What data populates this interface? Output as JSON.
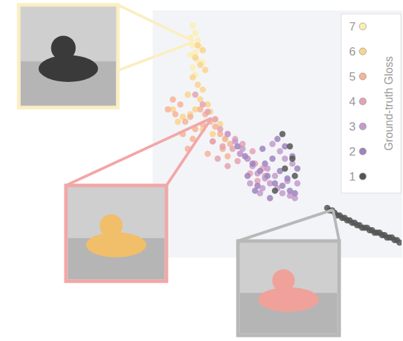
{
  "chart_data": {
    "type": "scatter",
    "legend_title": "Ground-truth Gloss",
    "legend": "top-right",
    "tick_labels": false,
    "xlim": [
      0,
      100
    ],
    "ylim": [
      0,
      100
    ],
    "series": [
      {
        "name": "7",
        "color": "#fbefb0",
        "x": [
          16,
          17,
          15,
          18,
          16,
          19,
          17,
          15,
          18,
          20,
          16,
          17
        ],
        "y": [
          94,
          91,
          89,
          88,
          86,
          85,
          83,
          82,
          80,
          79,
          77,
          74
        ]
      },
      {
        "name": "6",
        "color": "#f9d48e",
        "x": [
          18,
          20,
          17,
          19,
          21,
          16,
          18,
          20,
          14,
          19,
          22,
          17,
          15,
          12,
          10,
          23,
          25,
          27,
          8,
          20,
          24,
          29
        ],
        "y": [
          86,
          84,
          81,
          78,
          76,
          73,
          70,
          68,
          66,
          64,
          62,
          60,
          58,
          57,
          55,
          59,
          56,
          54,
          60,
          52,
          50,
          48
        ]
      },
      {
        "name": "5",
        "color": "#f5b497",
        "x": [
          6,
          9,
          11,
          13,
          15,
          17,
          19,
          21,
          23,
          25,
          27,
          29,
          31,
          8,
          12,
          16,
          20,
          24,
          28,
          14,
          22,
          30
        ],
        "y": [
          60,
          58,
          62,
          55,
          57,
          52,
          60,
          58,
          55,
          53,
          50,
          48,
          46,
          64,
          50,
          48,
          54,
          47,
          44,
          44,
          42,
          41
        ]
      },
      {
        "name": "4",
        "color": "#e3a3b2",
        "x": [
          17,
          20,
          22,
          25,
          27,
          30,
          24,
          28,
          32,
          35,
          38,
          41,
          44,
          33,
          36,
          39,
          42,
          26,
          30,
          34,
          40,
          45
        ],
        "y": [
          66,
          62,
          59,
          56,
          52,
          50,
          47,
          45,
          44,
          42,
          40,
          38,
          36,
          48,
          46,
          34,
          31,
          40,
          37,
          39,
          43,
          33
        ]
      },
      {
        "name": "3",
        "color": "#c39bcc",
        "x": [
          30,
          33,
          36,
          38,
          40,
          42,
          45,
          47,
          50,
          52,
          55,
          57,
          48,
          51,
          53,
          56,
          44,
          46,
          49,
          54,
          35,
          39,
          43,
          58
        ],
        "y": [
          50,
          47,
          44,
          40,
          37,
          34,
          32,
          30,
          28,
          26,
          25,
          24,
          46,
          43,
          40,
          38,
          28,
          36,
          33,
          31,
          42,
          30,
          26,
          30
        ]
      },
      {
        "name": "2",
        "color": "#9f84bd",
        "x": [
          34,
          37,
          40,
          43,
          46,
          49,
          52,
          55,
          57,
          50,
          53,
          56,
          48,
          45,
          42,
          51,
          54,
          47,
          44,
          41,
          58,
          38
        ],
        "y": [
          45,
          41,
          38,
          35,
          33,
          30,
          29,
          27,
          26,
          48,
          45,
          41,
          40,
          38,
          29,
          35,
          32,
          24,
          44,
          27,
          36,
          33
        ]
      },
      {
        "name": "1",
        "color": "#555555",
        "x": [
          52,
          55,
          56,
          53,
          57,
          49,
          70,
          71,
          72,
          73,
          74,
          75,
          76,
          77,
          78,
          79,
          80,
          81,
          82,
          83,
          84,
          85,
          86,
          87,
          88,
          89,
          90,
          91,
          92,
          93,
          94,
          95,
          96,
          97,
          98,
          99
        ],
        "y": [
          50,
          45,
          40,
          36,
          33,
          27,
          20,
          19,
          19,
          18,
          17,
          17,
          16,
          16,
          15,
          15,
          14,
          14,
          13,
          13,
          12,
          12,
          12,
          11,
          11,
          10,
          10,
          10,
          9,
          9,
          8,
          8,
          8,
          7,
          7,
          6
        ]
      }
    ]
  }
}
